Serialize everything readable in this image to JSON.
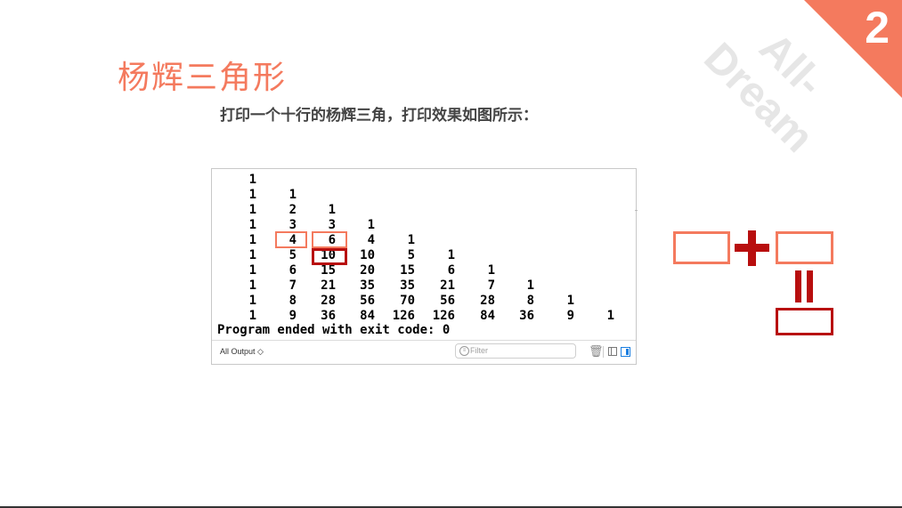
{
  "slide": {
    "number": "2",
    "watermark": "All-\nDream",
    "title": "杨辉三角形",
    "subtitle": "打印一个十行的杨辉三角，打印效果如图所示：",
    "accent_color": "#f47a5e",
    "dark_red": "#b80e0e"
  },
  "console": {
    "rows": [
      [
        "1"
      ],
      [
        "1",
        "1"
      ],
      [
        "1",
        "2",
        "1"
      ],
      [
        "1",
        "3",
        "3",
        "1"
      ],
      [
        "1",
        "4",
        "6",
        "4",
        "1"
      ],
      [
        "1",
        "5",
        "10",
        "10",
        "5",
        "1"
      ],
      [
        "1",
        "6",
        "15",
        "20",
        "15",
        "6",
        "1"
      ],
      [
        "1",
        "7",
        "21",
        "35",
        "35",
        "21",
        "7",
        "1"
      ],
      [
        "1",
        "8",
        "28",
        "56",
        "70",
        "56",
        "28",
        "8",
        "1"
      ],
      [
        "1",
        "9",
        "36",
        "84",
        "126",
        "126",
        "84",
        "36",
        "9",
        "1"
      ]
    ],
    "exit_message": "Program ended with exit code: 0",
    "toolbar": {
      "output_selector": "All Output ◇",
      "filter_placeholder": "Filter",
      "trash_icon": "trash-icon",
      "left_pane_icon": "pane-left-icon",
      "right_pane_icon": "pane-right-icon"
    }
  }
}
